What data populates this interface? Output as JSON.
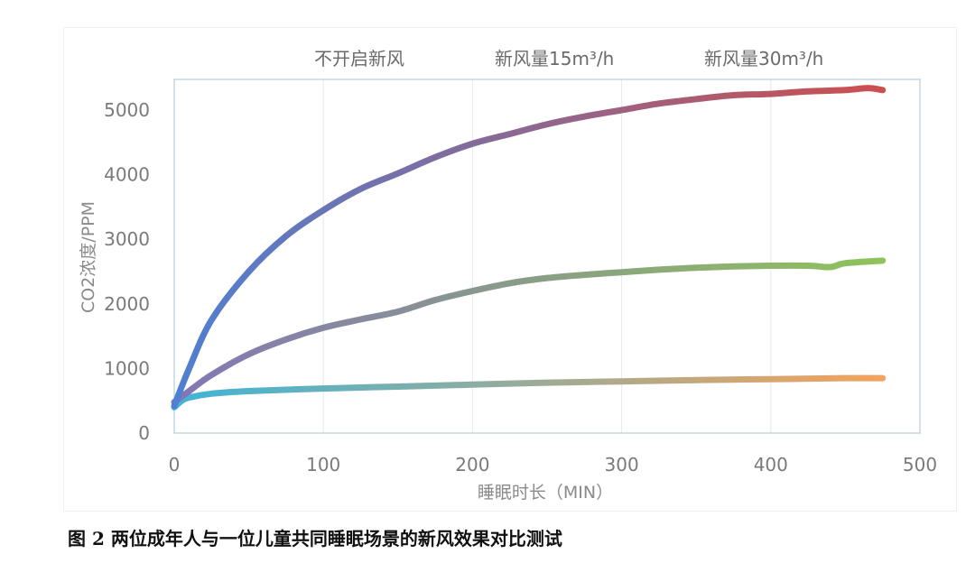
{
  "chart_data": {
    "type": "line",
    "title": "",
    "xlabel": "睡眠时长（MIN）",
    "ylabel": "CO2浓度/PPM",
    "xlim": [
      0,
      500
    ],
    "ylim": [
      0,
      5500
    ],
    "xticks": [
      0,
      100,
      200,
      300,
      400,
      500
    ],
    "yticks": [
      0,
      1000,
      2000,
      3000,
      4000,
      5000
    ],
    "grid": "vertical",
    "legend_position": "top",
    "series": [
      {
        "name": "不开启新风",
        "color_start": "#4f80d2",
        "color_end": "#cc4f4f",
        "x": [
          0,
          10,
          25,
          50,
          75,
          100,
          125,
          150,
          175,
          200,
          225,
          250,
          275,
          300,
          325,
          350,
          375,
          400,
          425,
          450,
          465,
          475
        ],
        "y": [
          420,
          1000,
          1750,
          2500,
          3050,
          3450,
          3780,
          4020,
          4270,
          4480,
          4630,
          4780,
          4900,
          5000,
          5100,
          5170,
          5230,
          5250,
          5290,
          5310,
          5340,
          5310
        ]
      },
      {
        "name": "新风量15m³/h",
        "color_start": "#8476b6",
        "color_end": "#8fc35a",
        "x": [
          0,
          10,
          25,
          50,
          75,
          100,
          125,
          150,
          175,
          200,
          225,
          250,
          275,
          300,
          325,
          350,
          375,
          400,
          425,
          440,
          450,
          475
        ],
        "y": [
          480,
          650,
          900,
          1220,
          1450,
          1630,
          1760,
          1880,
          2060,
          2200,
          2320,
          2400,
          2450,
          2490,
          2530,
          2560,
          2580,
          2590,
          2590,
          2570,
          2630,
          2670
        ]
      },
      {
        "name": "新风量30m³/h",
        "color_start": "#40b4d6",
        "color_end": "#f3a35c",
        "x": [
          0,
          5,
          10,
          25,
          50,
          100,
          150,
          200,
          250,
          300,
          350,
          400,
          450,
          475
        ],
        "y": [
          400,
          500,
          550,
          610,
          650,
          690,
          720,
          750,
          780,
          800,
          820,
          835,
          850,
          850
        ]
      }
    ]
  },
  "caption": "图 2 两位成年人与一位儿童共同睡眠场景的新风效果对比测试"
}
